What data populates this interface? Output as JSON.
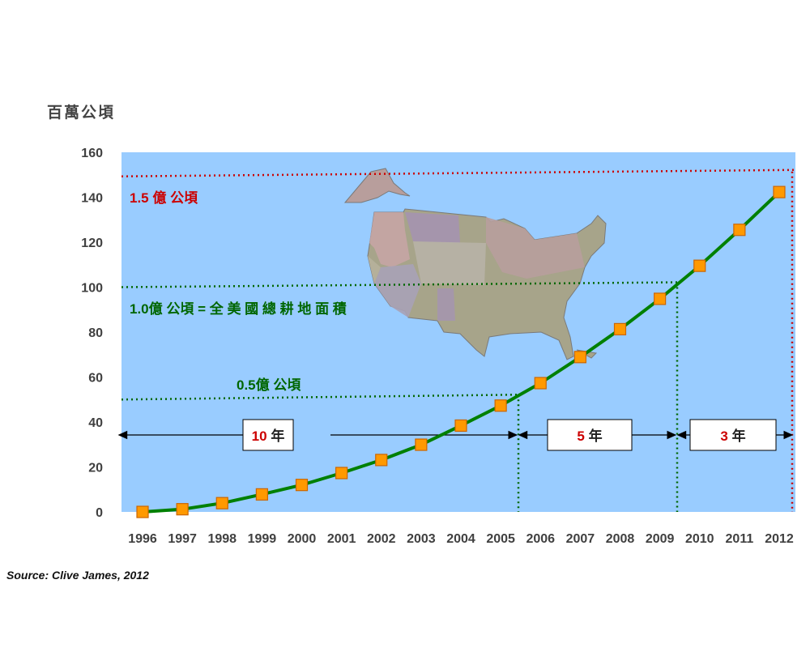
{
  "chart_data": {
    "type": "line",
    "ylabel": "百萬公頃",
    "x": [
      1996,
      1997,
      1998,
      1999,
      2000,
      2001,
      2002,
      2003,
      2004,
      2005,
      2006,
      2007,
      2008,
      2009,
      2010,
      2011,
      2012
    ],
    "categories": [
      "1996",
      "1997",
      "1998",
      "1999",
      "2000",
      "2001",
      "2002",
      "2003",
      "2004",
      "2005",
      "2006",
      "2007",
      "2008",
      "2009",
      "2010",
      "2011",
      "2012"
    ],
    "series": [
      {
        "values": [
          0,
          1.2,
          3.9,
          7.8,
          12.0,
          17.3,
          23.1,
          29.9,
          38.4,
          47.3,
          57.3,
          68.9,
          81.3,
          94.8,
          109.5,
          125.5,
          142.3
        ]
      }
    ],
    "ylim": [
      0,
      160
    ],
    "yticks": [
      0,
      20,
      40,
      60,
      80,
      100,
      120,
      140,
      160
    ],
    "grid": false,
    "colors": {
      "line": "#008000",
      "marker": "#ff9900",
      "marker_edge": "#cc6600",
      "background": "#99ccff"
    },
    "reference_lines": [
      {
        "label": "1.5 億 公頃",
        "value": 150,
        "color": "#cc0000"
      },
      {
        "label": "1.0億 公頃 = 全 美 國 總 耕 地 面 積",
        "value": 100,
        "color": "#006600"
      },
      {
        "label": "0.5億 公頃",
        "value": 50,
        "color": "#006600"
      }
    ],
    "intervals": [
      {
        "num": "10",
        "unit": "年",
        "from": 1996,
        "to": 2005.5
      },
      {
        "num": "5",
        "unit": "年",
        "from": 2005.5,
        "to": 2009.5
      },
      {
        "num": "3",
        "unit": "年",
        "from": 2009.5,
        "to": 2012.5
      }
    ]
  },
  "source": "Source: Clive James, 2012",
  "map_image": "us-map-image"
}
